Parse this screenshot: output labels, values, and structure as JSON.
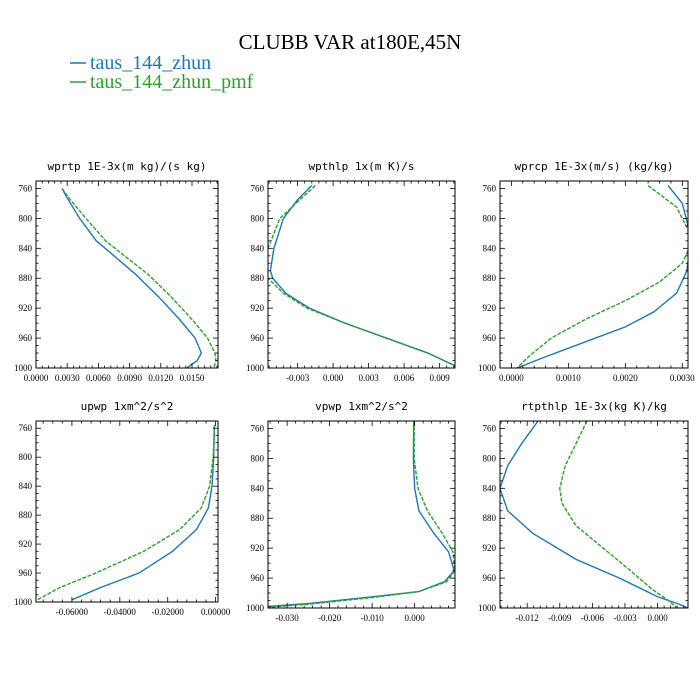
{
  "figure_title": "CLUBB VAR at180E,45N",
  "legend": [
    {
      "label": "taus_144_zhun",
      "color": "#1f77b4"
    },
    {
      "label": "taus_144_zhun_pmf",
      "color": "#2ca02c"
    }
  ],
  "chart_data": [
    {
      "type": "line",
      "title": "wprtp  1E-3x(m kg)/(s kg)",
      "xlim": [
        0,
        0.0175
      ],
      "ylim": [
        1000,
        750
      ],
      "xticks": [
        0,
        0.003,
        0.006,
        0.009,
        0.012,
        0.015
      ],
      "xtick_labels": [
        "0.0000",
        "0.0030",
        "0.0060",
        "0.0090",
        "0.0120",
        "0.0150"
      ],
      "yticks": [
        760,
        800,
        840,
        880,
        920,
        960,
        1000
      ],
      "series": [
        {
          "name": "taus_144_zhun",
          "points": [
            [
              0.0025,
              760
            ],
            [
              0.0031,
              775
            ],
            [
              0.0042,
              800
            ],
            [
              0.0058,
              830
            ],
            [
              0.0075,
              850
            ],
            [
              0.0096,
              875
            ],
            [
              0.0118,
              905
            ],
            [
              0.0138,
              935
            ],
            [
              0.0153,
              960
            ],
            [
              0.0159,
              980
            ],
            [
              0.0155,
              990
            ],
            [
              0.0145,
              1000
            ]
          ]
        },
        {
          "name": "taus_144_zhun_pmf",
          "points": [
            [
              0.0025,
              760
            ],
            [
              0.0033,
              775
            ],
            [
              0.0048,
              800
            ],
            [
              0.0067,
              830
            ],
            [
              0.0085,
              850
            ],
            [
              0.0108,
              875
            ],
            [
              0.013,
              905
            ],
            [
              0.015,
              935
            ],
            [
              0.0165,
              960
            ],
            [
              0.0172,
              980
            ],
            [
              0.0173,
              990
            ],
            [
              0.0171,
              1000
            ]
          ]
        }
      ]
    },
    {
      "type": "line",
      "title": "wpthlp  1x(m K)/s",
      "xlim": [
        -0.0055,
        0.0103
      ],
      "ylim": [
        1000,
        750
      ],
      "xticks": [
        -0.003,
        0,
        0.003,
        0.006,
        0.009
      ],
      "xtick_labels": [
        "-0.003",
        "0.000",
        "0.003",
        "0.006",
        "0.009"
      ],
      "yticks": [
        760,
        800,
        840,
        880,
        920,
        960,
        1000
      ],
      "series": [
        {
          "name": "taus_144_zhun",
          "points": [
            [
              -0.0018,
              756
            ],
            [
              -0.003,
              775
            ],
            [
              -0.0042,
              800
            ],
            [
              -0.005,
              840
            ],
            [
              -0.0053,
              870
            ],
            [
              -0.0051,
              880
            ],
            [
              -0.004,
              900
            ],
            [
              -0.002,
              920
            ],
            [
              0.001,
              940
            ],
            [
              0.0045,
              960
            ],
            [
              0.008,
              980
            ],
            [
              0.0103,
              997
            ]
          ]
        },
        {
          "name": "taus_144_zhun_pmf",
          "points": [
            [
              -0.0015,
              756
            ],
            [
              -0.0028,
              775
            ],
            [
              -0.0045,
              800
            ],
            [
              -0.0055,
              840
            ],
            [
              -0.0058,
              870
            ],
            [
              -0.0055,
              880
            ],
            [
              -0.0042,
              900
            ],
            [
              -0.0022,
              920
            ],
            [
              0.001,
              940
            ],
            [
              0.0045,
              960
            ],
            [
              0.008,
              980
            ],
            [
              0.0103,
              997
            ]
          ]
        }
      ]
    },
    {
      "type": "line",
      "title": "wprcp  1E-3x(m/s) (kg/kg)",
      "xlim": [
        -0.0002,
        0.0031
      ],
      "ylim": [
        1000,
        750
      ],
      "xticks": [
        0,
        0.001,
        0.002,
        0.003
      ],
      "xtick_labels": [
        "0.0000",
        "0.0010",
        "0.0020",
        "0.0030"
      ],
      "yticks": [
        760,
        800,
        840,
        880,
        920,
        960,
        1000
      ],
      "series": [
        {
          "name": "taus_144_zhun",
          "points": [
            [
              0.00275,
              756
            ],
            [
              0.003,
              780
            ],
            [
              0.0031,
              810
            ],
            [
              0.00313,
              840
            ],
            [
              0.00308,
              870
            ],
            [
              0.0029,
              900
            ],
            [
              0.0025,
              925
            ],
            [
              0.002,
              945
            ],
            [
              0.0013,
              965
            ],
            [
              0.0006,
              985
            ],
            [
              0.0001,
              1000
            ]
          ]
        },
        {
          "name": "taus_144_zhun_pmf",
          "points": [
            [
              0.0024,
              756
            ],
            [
              0.0029,
              785
            ],
            [
              0.0031,
              815
            ],
            [
              0.00312,
              840
            ],
            [
              0.003,
              860
            ],
            [
              0.0026,
              885
            ],
            [
              0.002,
              910
            ],
            [
              0.0013,
              935
            ],
            [
              0.0007,
              960
            ],
            [
              0.0003,
              985
            ],
            [
              0.0001,
              1000
            ]
          ]
        }
      ]
    },
    {
      "type": "line",
      "title": "upwp  1xm^2/s^2",
      "xlim": [
        -0.075,
        0.001
      ],
      "ylim": [
        1000,
        750
      ],
      "xticks": [
        -0.06,
        -0.04,
        -0.02,
        0
      ],
      "xtick_labels": [
        "-0.06000",
        "-0.04000",
        "-0.02000",
        "0.00000"
      ],
      "yticks": [
        760,
        800,
        840,
        880,
        920,
        960,
        1000
      ],
      "series": [
        {
          "name": "taus_144_zhun",
          "points": [
            [
              -0.0005,
              756
            ],
            [
              -0.0008,
              800
            ],
            [
              -0.0015,
              840
            ],
            [
              -0.003,
              870
            ],
            [
              -0.008,
              900
            ],
            [
              -0.018,
              930
            ],
            [
              -0.032,
              960
            ],
            [
              -0.048,
              980
            ],
            [
              -0.06,
              997
            ]
          ]
        },
        {
          "name": "taus_144_zhun_pmf",
          "points": [
            [
              -0.0005,
              756
            ],
            [
              -0.001,
              800
            ],
            [
              -0.0025,
              840
            ],
            [
              -0.006,
              870
            ],
            [
              -0.015,
              900
            ],
            [
              -0.03,
              930
            ],
            [
              -0.05,
              960
            ],
            [
              -0.065,
              980
            ],
            [
              -0.075,
              998
            ]
          ]
        }
      ]
    },
    {
      "type": "line",
      "title": "vpwp  1xm^2/s^2",
      "xlim": [
        -0.0345,
        0.0095
      ],
      "ylim": [
        1000,
        750
      ],
      "xticks": [
        -0.03,
        -0.02,
        -0.01,
        0
      ],
      "xtick_labels": [
        "-0.030",
        "-0.020",
        "-0.010",
        "0.000"
      ],
      "yticks": [
        760,
        800,
        840,
        880,
        920,
        960,
        1000
      ],
      "series": [
        {
          "name": "taus_144_zhun",
          "points": [
            [
              -0.0002,
              750
            ],
            [
              -0.0003,
              800
            ],
            [
              0.0,
              840
            ],
            [
              0.001,
              870
            ],
            [
              0.0045,
              900
            ],
            [
              0.008,
              925
            ],
            [
              0.0093,
              950
            ],
            [
              0.007,
              965
            ],
            [
              0.001,
              978
            ],
            [
              -0.01,
              985
            ],
            [
              -0.025,
              994
            ],
            [
              -0.0345,
              998
            ]
          ]
        },
        {
          "name": "taus_144_zhun_pmf",
          "points": [
            [
              -0.0001,
              750
            ],
            [
              -0.0001,
              800
            ],
            [
              0.0008,
              840
            ],
            [
              0.003,
              870
            ],
            [
              0.0065,
              900
            ],
            [
              0.009,
              925
            ],
            [
              0.0095,
              950
            ],
            [
              0.0075,
              965
            ],
            [
              0.001,
              978
            ],
            [
              -0.01,
              986
            ],
            [
              -0.025,
              995
            ],
            [
              -0.0345,
              999
            ]
          ]
        }
      ]
    },
    {
      "type": "line",
      "title": "rtpthlp  1E-3x(kg K)/kg",
      "xlim": [
        -0.0145,
        0.0028
      ],
      "ylim": [
        1000,
        750
      ],
      "xticks": [
        -0.012,
        -0.009,
        -0.006,
        -0.003,
        0
      ],
      "xtick_labels": [
        "-0.012",
        "-0.009",
        "-0.006",
        "-0.003",
        "0.000"
      ],
      "yticks": [
        760,
        800,
        840,
        880,
        920,
        960,
        1000
      ],
      "series": [
        {
          "name": "taus_144_zhun",
          "points": [
            [
              -0.011,
              750
            ],
            [
              -0.0125,
              780
            ],
            [
              -0.0138,
              810
            ],
            [
              -0.0145,
              840
            ],
            [
              -0.0138,
              870
            ],
            [
              -0.0115,
              900
            ],
            [
              -0.0075,
              935
            ],
            [
              -0.0035,
              960
            ],
            [
              0.0,
              985
            ],
            [
              0.002,
              995
            ],
            [
              0.0028,
              1000
            ]
          ]
        },
        {
          "name": "taus_144_zhun_pmf",
          "points": [
            [
              -0.0065,
              750
            ],
            [
              -0.0075,
              780
            ],
            [
              -0.0085,
              810
            ],
            [
              -0.009,
              840
            ],
            [
              -0.0088,
              860
            ],
            [
              -0.0075,
              890
            ],
            [
              -0.005,
              920
            ],
            [
              -0.0025,
              950
            ],
            [
              -0.0005,
              975
            ],
            [
              0.001,
              990
            ],
            [
              0.0018,
              1000
            ]
          ]
        }
      ]
    }
  ]
}
